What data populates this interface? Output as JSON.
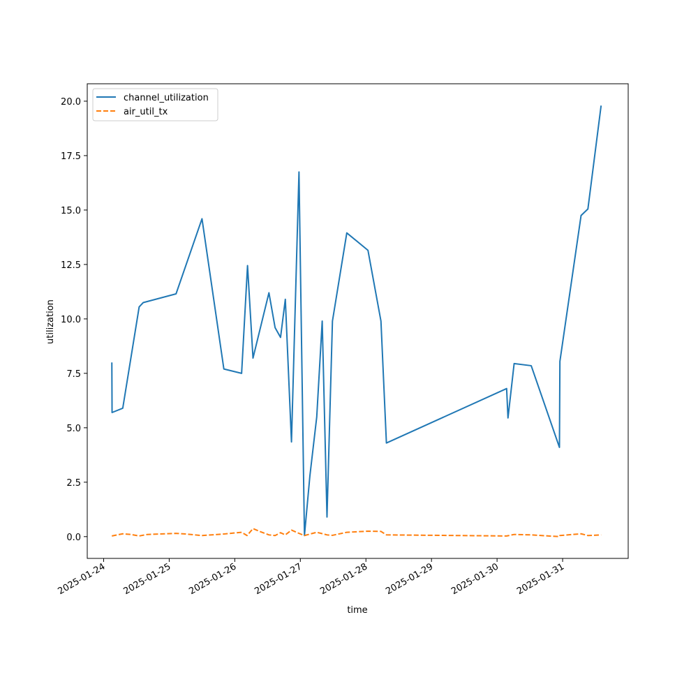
{
  "chart_data": {
    "type": "line",
    "xlabel": "time",
    "ylabel": "utilization",
    "x_ticks": [
      "2025-01-24",
      "2025-01-25",
      "2025-01-26",
      "2025-01-27",
      "2025-01-28",
      "2025-01-29",
      "2025-01-30",
      "2025-01-31"
    ],
    "y_ticks": [
      "0.0",
      "2.5",
      "5.0",
      "7.5",
      "10.0",
      "12.5",
      "15.0",
      "17.5",
      "20.0"
    ],
    "xlim": [
      "2025-01-23T18:00",
      "2025-02-01T00:00"
    ],
    "ylim": [
      -1.0,
      20.8
    ],
    "grid": false,
    "legend": "top-left",
    "series": [
      {
        "name": "channel_utilization",
        "color": "#1f77b4",
        "style": "solid",
        "points": [
          [
            "2025-01-24T03:00",
            8.0
          ],
          [
            "2025-01-24T03:05",
            5.7
          ],
          [
            "2025-01-24T07:00",
            5.9
          ],
          [
            "2025-01-24T13:00",
            10.55
          ],
          [
            "2025-01-24T14:30",
            10.75
          ],
          [
            "2025-01-25T02:30",
            11.15
          ],
          [
            "2025-01-25T12:00",
            14.6
          ],
          [
            "2025-01-25T20:00",
            7.7
          ],
          [
            "2025-01-26T02:30",
            7.5
          ],
          [
            "2025-01-26T04:40",
            12.45
          ],
          [
            "2025-01-26T06:40",
            8.2
          ],
          [
            "2025-01-26T12:30",
            11.2
          ],
          [
            "2025-01-26T14:45",
            9.6
          ],
          [
            "2025-01-26T16:45",
            9.15
          ],
          [
            "2025-01-26T18:30",
            10.9
          ],
          [
            "2025-01-26T20:45",
            4.35
          ],
          [
            "2025-01-26T23:30",
            16.75
          ],
          [
            "2025-01-27T01:30",
            0.05
          ],
          [
            "2025-01-27T03:30",
            2.8
          ],
          [
            "2025-01-27T06:00",
            5.5
          ],
          [
            "2025-01-27T08:00",
            9.9
          ],
          [
            "2025-01-27T09:45",
            0.9
          ],
          [
            "2025-01-27T11:45",
            9.9
          ],
          [
            "2025-01-27T17:00",
            13.95
          ],
          [
            "2025-01-28T00:45",
            13.15
          ],
          [
            "2025-01-28T05:30",
            9.9
          ],
          [
            "2025-01-28T07:30",
            4.3
          ],
          [
            "2025-01-30T03:30",
            6.8
          ],
          [
            "2025-01-30T04:00",
            5.45
          ],
          [
            "2025-01-30T06:15",
            7.95
          ],
          [
            "2025-01-30T12:30",
            7.85
          ],
          [
            "2025-01-30T22:50",
            4.1
          ],
          [
            "2025-01-30T23:00",
            8.05
          ],
          [
            "2025-01-31T06:45",
            14.75
          ],
          [
            "2025-01-31T09:15",
            15.05
          ],
          [
            "2025-01-31T14:05",
            19.8
          ]
        ]
      },
      {
        "name": "air_util_tx",
        "color": "#ff7f0e",
        "style": "dashed",
        "points": [
          [
            "2025-01-24T03:00",
            0.03
          ],
          [
            "2025-01-24T07:00",
            0.13
          ],
          [
            "2025-01-24T10:00",
            0.1
          ],
          [
            "2025-01-24T13:00",
            0.03
          ],
          [
            "2025-01-24T16:00",
            0.1
          ],
          [
            "2025-01-25T02:30",
            0.15
          ],
          [
            "2025-01-25T06:00",
            0.12
          ],
          [
            "2025-01-25T12:00",
            0.05
          ],
          [
            "2025-01-25T20:00",
            0.12
          ],
          [
            "2025-01-26T02:30",
            0.2
          ],
          [
            "2025-01-26T04:30",
            0.05
          ],
          [
            "2025-01-26T06:40",
            0.37
          ],
          [
            "2025-01-26T09:30",
            0.22
          ],
          [
            "2025-01-26T12:30",
            0.08
          ],
          [
            "2025-01-26T14:45",
            0.05
          ],
          [
            "2025-01-26T16:45",
            0.18
          ],
          [
            "2025-01-26T18:30",
            0.08
          ],
          [
            "2025-01-26T20:45",
            0.3
          ],
          [
            "2025-01-26T23:30",
            0.15
          ],
          [
            "2025-01-27T01:30",
            0.05
          ],
          [
            "2025-01-27T06:00",
            0.2
          ],
          [
            "2025-01-27T09:45",
            0.08
          ],
          [
            "2025-01-27T11:45",
            0.06
          ],
          [
            "2025-01-27T17:00",
            0.2
          ],
          [
            "2025-01-28T00:45",
            0.25
          ],
          [
            "2025-01-28T05:30",
            0.24
          ],
          [
            "2025-01-28T07:30",
            0.08
          ],
          [
            "2025-01-30T03:30",
            0.03
          ],
          [
            "2025-01-30T06:15",
            0.1
          ],
          [
            "2025-01-30T12:30",
            0.08
          ],
          [
            "2025-01-30T22:50",
            0.0
          ],
          [
            "2025-01-30T23:00",
            0.05
          ],
          [
            "2025-01-31T06:45",
            0.13
          ],
          [
            "2025-01-31T09:15",
            0.05
          ],
          [
            "2025-01-31T14:05",
            0.08
          ]
        ]
      }
    ]
  }
}
